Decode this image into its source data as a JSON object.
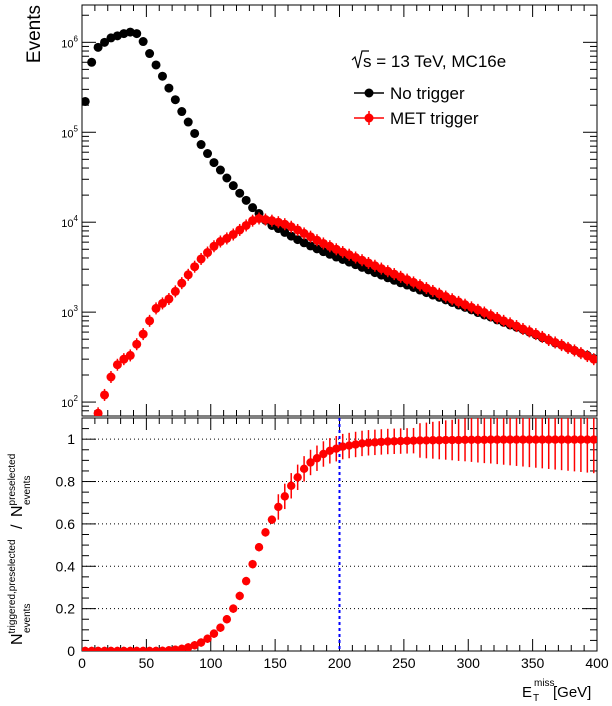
{
  "chart_data": [
    {
      "type": "scatter",
      "panel": "top",
      "yscale": "log",
      "xlim": [
        0,
        400
      ],
      "ylim": [
        70,
        2600000
      ],
      "ylabel": "Events",
      "y_ticks": [
        {
          "value": 100,
          "base": "10",
          "exp": "2"
        },
        {
          "value": 1000,
          "base": "10",
          "exp": "3"
        },
        {
          "value": 10000,
          "base": "10",
          "exp": "4"
        },
        {
          "value": 100000,
          "base": "10",
          "exp": "5"
        },
        {
          "value": 1000000,
          "base": "10",
          "exp": "6"
        }
      ],
      "annotation": {
        "sqrt": "s",
        "rest": " = 13 TeV, MC16e"
      },
      "legend_position": "top-right",
      "x": [
        2.5,
        7.5,
        12.5,
        17.5,
        22.5,
        27.5,
        32.5,
        37.5,
        42.5,
        47.5,
        52.5,
        57.5,
        62.5,
        67.5,
        72.5,
        77.5,
        82.5,
        87.5,
        92.5,
        97.5,
        102.5,
        107.5,
        112.5,
        117.5,
        122.5,
        127.5,
        132.5,
        137.5,
        142.5,
        147.5,
        152.5,
        157.5,
        162.5,
        167.5,
        172.5,
        177.5,
        182.5,
        187.5,
        192.5,
        197.5,
        202.5,
        207.5,
        212.5,
        217.5,
        222.5,
        227.5,
        232.5,
        237.5,
        242.5,
        247.5,
        252.5,
        257.5,
        262.5,
        267.5,
        272.5,
        277.5,
        282.5,
        287.5,
        292.5,
        297.5,
        302.5,
        307.5,
        312.5,
        317.5,
        322.5,
        327.5,
        332.5,
        337.5,
        342.5,
        347.5,
        352.5,
        357.5,
        362.5,
        367.5,
        372.5,
        377.5,
        382.5,
        387.5,
        392.5,
        397.5
      ],
      "series": [
        {
          "name": "No trigger",
          "color": "#000000",
          "values": [
            220000,
            600000,
            880000,
            1000000,
            1120000,
            1180000,
            1250000,
            1300000,
            1250000,
            1020000,
            750000,
            560000,
            420000,
            310000,
            230000,
            170000,
            130000,
            97000,
            73000,
            58000,
            46000,
            38000,
            31000,
            25500,
            21000,
            17500,
            14500,
            12500,
            10500,
            9200,
            8500,
            7700,
            7000,
            6400,
            5900,
            5450,
            5050,
            4700,
            4400,
            4100,
            3850,
            3600,
            3370,
            3150,
            2950,
            2750,
            2580,
            2410,
            2260,
            2120,
            2000,
            1880,
            1760,
            1650,
            1550,
            1460,
            1370,
            1280,
            1200,
            1130,
            1060,
            990,
            930,
            880,
            820,
            770,
            720,
            680,
            640,
            600,
            560,
            520,
            490,
            455,
            430,
            400,
            375,
            350,
            330,
            305
          ]
        },
        {
          "name": "MET trigger",
          "color": "#ff0000",
          "values": [
            null,
            null,
            null,
            null,
            null,
            null,
            null,
            null,
            null,
            null,
            null,
            null,
            null,
            null,
            null,
            null,
            null,
            null,
            null,
            null,
            null,
            null,
            null,
            null,
            null,
            null,
            null,
            null,
            null,
            null,
            null,
            null,
            null,
            null,
            null,
            null,
            null,
            null,
            null,
            null,
            null,
            null,
            null,
            null,
            null,
            null,
            null,
            null,
            null,
            null,
            null,
            null,
            null,
            null,
            null,
            null,
            null,
            null,
            null,
            null,
            null,
            null,
            null,
            null,
            null,
            null,
            null,
            null,
            null,
            null,
            null,
            null,
            null,
            null,
            null,
            null,
            null,
            null,
            null,
            null
          ],
          "points": [
            [
              12.5,
              75
            ],
            [
              17.5,
              120
            ],
            [
              22.5,
              190
            ],
            [
              27.5,
              260
            ],
            [
              32.5,
              300
            ],
            [
              37.5,
              330
            ],
            [
              42.5,
              440
            ],
            [
              47.5,
              570
            ],
            [
              52.5,
              800
            ],
            [
              57.5,
              1100
            ],
            [
              62.5,
              1250
            ],
            [
              67.5,
              1400
            ],
            [
              72.5,
              1700
            ],
            [
              77.5,
              2100
            ],
            [
              82.5,
              2600
            ],
            [
              87.5,
              3200
            ],
            [
              92.5,
              3900
            ],
            [
              97.5,
              4600
            ],
            [
              102.5,
              5400
            ],
            [
              107.5,
              6100
            ],
            [
              112.5,
              6600
            ],
            [
              117.5,
              7300
            ],
            [
              122.5,
              8200
            ],
            [
              127.5,
              9200
            ],
            [
              132.5,
              10400
            ],
            [
              137.5,
              11000
            ],
            [
              142.5,
              10700
            ],
            [
              147.5,
              10400
            ],
            [
              152.5,
              10000
            ],
            [
              157.5,
              9500
            ],
            [
              162.5,
              8900
            ],
            [
              167.5,
              8200
            ],
            [
              172.5,
              7500
            ],
            [
              177.5,
              6900
            ],
            [
              182.5,
              6300
            ],
            [
              187.5,
              5800
            ],
            [
              192.5,
              5400
            ],
            [
              197.5,
              5000
            ],
            [
              202.5,
              4650
            ],
            [
              207.5,
              4350
            ],
            [
              212.5,
              4050
            ],
            [
              217.5,
              3780
            ],
            [
              222.5,
              3520
            ],
            [
              227.5,
              3280
            ],
            [
              232.5,
              3050
            ],
            [
              237.5,
              2850
            ],
            [
              242.5,
              2650
            ],
            [
              247.5,
              2470
            ],
            [
              252.5,
              2300
            ],
            [
              257.5,
              2140
            ],
            [
              262.5,
              1990
            ],
            [
              267.5,
              1850
            ],
            [
              272.5,
              1720
            ],
            [
              277.5,
              1600
            ],
            [
              282.5,
              1490
            ],
            [
              287.5,
              1390
            ],
            [
              292.5,
              1300
            ],
            [
              297.5,
              1210
            ],
            [
              302.5,
              1130
            ],
            [
              307.5,
              1060
            ],
            [
              312.5,
              990
            ],
            [
              317.5,
              920
            ],
            [
              322.5,
              860
            ],
            [
              327.5,
              800
            ],
            [
              332.5,
              750
            ],
            [
              337.5,
              700
            ],
            [
              342.5,
              650
            ],
            [
              347.5,
              610
            ],
            [
              352.5,
              570
            ],
            [
              357.5,
              530
            ],
            [
              362.5,
              490
            ],
            [
              367.5,
              460
            ],
            [
              372.5,
              430
            ],
            [
              377.5,
              400
            ],
            [
              382.5,
              375
            ],
            [
              387.5,
              350
            ],
            [
              392.5,
              325
            ],
            [
              397.5,
              300
            ]
          ]
        }
      ]
    },
    {
      "type": "scatter",
      "panel": "bottom",
      "xlim": [
        0,
        400
      ],
      "ylim": [
        0,
        1.1
      ],
      "xlabel_main": "E",
      "xlabel_sub": "T",
      "xlabel_sup": "miss",
      "xlabel_unit": " [GeV]",
      "ylabel_num_main": "N",
      "ylabel_num_sup": "triggered,preselected",
      "ylabel_num_sub": "events",
      "ylabel_den_main": "N",
      "ylabel_den_sup": "preselected",
      "ylabel_den_sub": "events",
      "x_ticks": [
        "0",
        "50",
        "100",
        "150",
        "200",
        "250",
        "300",
        "350",
        "400"
      ],
      "y_ticks": [
        "0",
        "0.2",
        "0.4",
        "0.6",
        "0.8",
        "1"
      ],
      "grid_y": true,
      "reference_line_x": 200,
      "series": [
        {
          "name": "",
          "color": "#ff0000",
          "x": [
            2.5,
            7.5,
            12.5,
            17.5,
            22.5,
            27.5,
            32.5,
            37.5,
            42.5,
            47.5,
            52.5,
            57.5,
            62.5,
            67.5,
            72.5,
            77.5,
            82.5,
            87.5,
            92.5,
            97.5,
            102.5,
            107.5,
            112.5,
            117.5,
            122.5,
            127.5,
            132.5,
            137.5,
            142.5,
            147.5,
            152.5,
            157.5,
            162.5,
            167.5,
            172.5,
            177.5,
            182.5,
            187.5,
            192.5,
            197.5,
            202.5,
            207.5,
            212.5,
            217.5,
            222.5,
            227.5,
            232.5,
            237.5,
            242.5,
            247.5,
            252.5,
            257.5,
            262.5,
            267.5,
            272.5,
            277.5,
            282.5,
            287.5,
            292.5,
            297.5,
            302.5,
            307.5,
            312.5,
            317.5,
            322.5,
            327.5,
            332.5,
            337.5,
            342.5,
            347.5,
            352.5,
            357.5,
            362.5,
            367.5,
            372.5,
            377.5,
            382.5,
            387.5,
            392.5,
            397.5
          ],
          "values": [
            0.0,
            0.0,
            0.0,
            0.0,
            0.0,
            0.0,
            0.0,
            0.0,
            0.0,
            0.0,
            0.0,
            0.0,
            0.001,
            0.003,
            0.006,
            0.01,
            0.017,
            0.027,
            0.04,
            0.058,
            0.082,
            0.11,
            0.15,
            0.2,
            0.26,
            0.33,
            0.41,
            0.49,
            0.56,
            0.62,
            0.68,
            0.73,
            0.78,
            0.82,
            0.86,
            0.89,
            0.91,
            0.93,
            0.945,
            0.955,
            0.965,
            0.97,
            0.975,
            0.98,
            0.983,
            0.985,
            0.987,
            0.989,
            0.99,
            0.991,
            0.992,
            0.993,
            0.994,
            0.994,
            0.995,
            0.995,
            0.996,
            0.996,
            0.996,
            0.997,
            0.997,
            0.997,
            0.997,
            0.998,
            0.998,
            0.998,
            0.998,
            0.998,
            0.998,
            0.998,
            0.998,
            0.998,
            0.998,
            0.998,
            0.998,
            0.998,
            0.998,
            0.998,
            0.998,
            0.998
          ]
        }
      ]
    }
  ]
}
